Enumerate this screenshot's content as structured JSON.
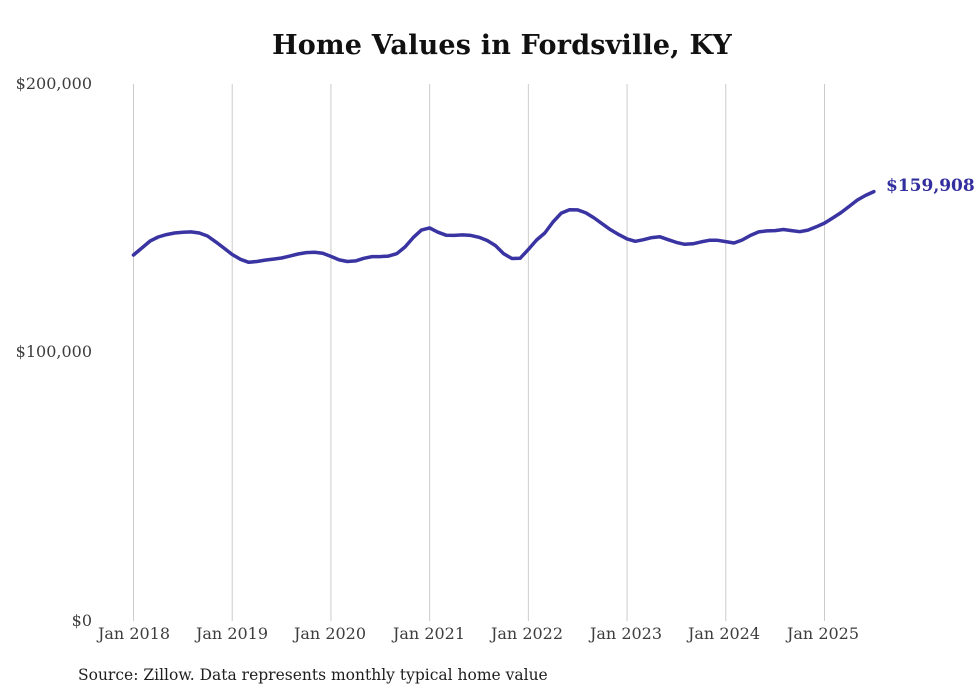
{
  "title": "Home Values in Fordsville, KY",
  "source_note": "Source: Zillow. Data represents monthly typical home value",
  "colors": {
    "line": "#3a34a2",
    "end_label": "#322e9e",
    "gridline": "#cccccc",
    "tick_label": "#3d3d3d",
    "title": "#111111",
    "background": "#ffffff"
  },
  "chart_data": {
    "type": "line",
    "title": "Home Values in Fordsville, KY",
    "xlabel": "",
    "ylabel": "",
    "ylim": [
      0,
      200000
    ],
    "grid": "vertical-only",
    "legend": "none",
    "series_name": "Typical home value (monthly)",
    "last_value_label": "$159,908",
    "last_value": 159908,
    "y_ticks": [
      {
        "label": "$0",
        "value": 0
      },
      {
        "label": "$100,000",
        "value": 100000
      },
      {
        "label": "$200,000",
        "value": 200000
      }
    ],
    "x_ticks": [
      {
        "label": "Jan 2018",
        "month_index": 0
      },
      {
        "label": "Jan 2019",
        "month_index": 12
      },
      {
        "label": "Jan 2020",
        "month_index": 24
      },
      {
        "label": "Jan 2021",
        "month_index": 36
      },
      {
        "label": "Jan 2022",
        "month_index": 48
      },
      {
        "label": "Jan 2023",
        "month_index": 60
      },
      {
        "label": "Jan 2024",
        "month_index": 72
      },
      {
        "label": "Jan 2025",
        "month_index": 84
      }
    ],
    "x": [
      "2018-01",
      "2018-02",
      "2018-03",
      "2018-04",
      "2018-05",
      "2018-06",
      "2018-07",
      "2018-08",
      "2018-09",
      "2018-10",
      "2018-11",
      "2018-12",
      "2019-01",
      "2019-02",
      "2019-03",
      "2019-04",
      "2019-05",
      "2019-06",
      "2019-07",
      "2019-08",
      "2019-09",
      "2019-10",
      "2019-11",
      "2019-12",
      "2020-01",
      "2020-02",
      "2020-03",
      "2020-04",
      "2020-05",
      "2020-06",
      "2020-07",
      "2020-08",
      "2020-09",
      "2020-10",
      "2020-11",
      "2020-12",
      "2021-01",
      "2021-02",
      "2021-03",
      "2021-04",
      "2021-05",
      "2021-06",
      "2021-07",
      "2021-08",
      "2021-09",
      "2021-10",
      "2021-11",
      "2021-12",
      "2022-01",
      "2022-02",
      "2022-03",
      "2022-04",
      "2022-05",
      "2022-06",
      "2022-07",
      "2022-08",
      "2022-09",
      "2022-10",
      "2022-11",
      "2022-12",
      "2023-01",
      "2023-02",
      "2023-03",
      "2023-04",
      "2023-05",
      "2023-06",
      "2023-07",
      "2023-08",
      "2023-09",
      "2023-10",
      "2023-11",
      "2023-12",
      "2024-01",
      "2024-02",
      "2024-03",
      "2024-04",
      "2024-05",
      "2024-06",
      "2024-07",
      "2024-08",
      "2024-09",
      "2024-10",
      "2024-11",
      "2024-12",
      "2025-01",
      "2025-02",
      "2025-03",
      "2025-04",
      "2025-05",
      "2025-06",
      "2025-07"
    ],
    "values": [
      136300,
      138900,
      141500,
      143000,
      143900,
      144500,
      144800,
      144900,
      144500,
      143400,
      141200,
      138900,
      136500,
      134700,
      133600,
      133900,
      134400,
      134800,
      135200,
      135900,
      136700,
      137200,
      137300,
      137000,
      135800,
      134500,
      133900,
      134100,
      135100,
      135700,
      135700,
      135900,
      136800,
      139300,
      142800,
      145600,
      146400,
      144800,
      143700,
      143600,
      143800,
      143600,
      142900,
      141700,
      139800,
      136800,
      135000,
      135100,
      138400,
      141900,
      144500,
      148600,
      151900,
      153200,
      153100,
      152000,
      150100,
      147900,
      145700,
      143900,
      142300,
      141400,
      142000,
      142800,
      143100,
      142000,
      141000,
      140300,
      140500,
      141200,
      141800,
      141800,
      141300,
      140800,
      141900,
      143600,
      144900,
      145300,
      145400,
      145800,
      145400,
      145000,
      145600,
      146800,
      148200,
      150100,
      152100,
      154400,
      156800,
      158500,
      159908
    ]
  }
}
